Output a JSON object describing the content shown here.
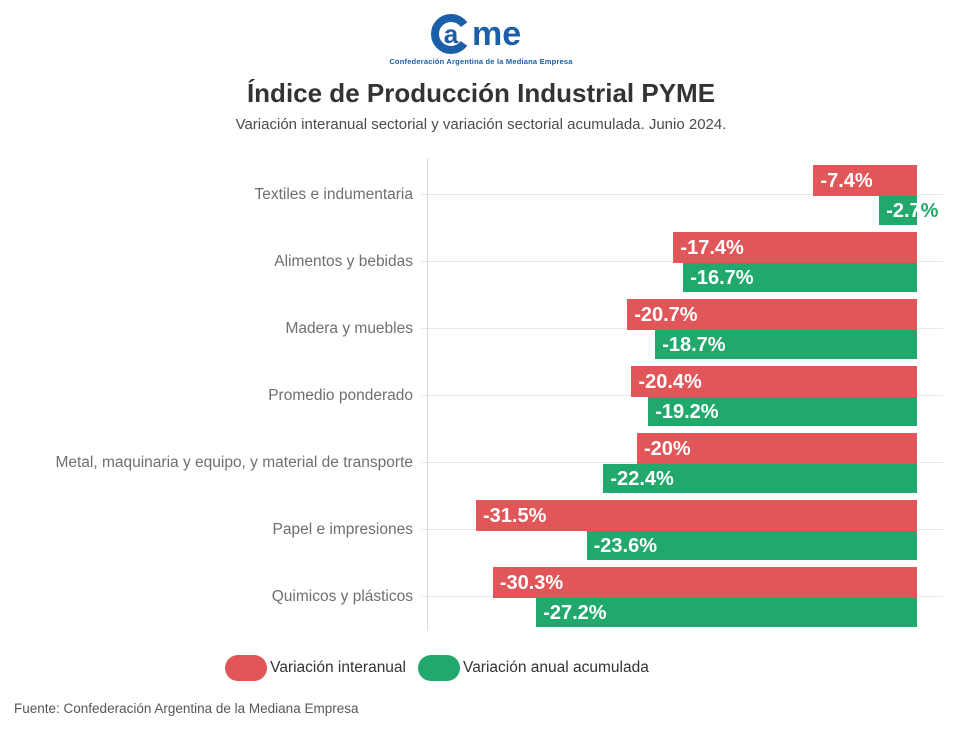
{
  "logo": {
    "wordmark_a": "a",
    "wordmark_rest": "me",
    "tagline": "Confederación Argentina de la Mediana Empresa",
    "color": "#1a5fa8"
  },
  "header": {
    "title": "Índice de Producción Industrial PYME",
    "subtitle": "Variación interanual sectorial y variación sectorial acumulada. Junio 2024."
  },
  "chart_data": {
    "type": "bar",
    "orientation": "horizontal",
    "title": "Índice de Producción Industrial PYME",
    "subtitle": "Variación interanual sectorial y variación sectorial acumulada. Junio 2024.",
    "categories": [
      "Textiles e indumentaria",
      "Alimentos y bebidas",
      "Madera y muebles",
      "Promedio ponderado",
      "Metal, maquinaria y equipo, y material de transporte",
      "Papel e impresiones",
      "Quimicos y plásticos"
    ],
    "series": [
      {
        "name": "Variación interanual",
        "color": "#e15658",
        "values": [
          -7.4,
          -17.4,
          -20.7,
          -20.4,
          -20,
          -31.5,
          -30.3
        ],
        "labels": [
          "-7.4%",
          "-17.4%",
          "-20.7%",
          "-20.4%",
          "-20%",
          "-31.5%",
          "-30.3%"
        ]
      },
      {
        "name": "Variación anual acumulada",
        "color": "#21a86c",
        "values": [
          -2.7,
          -16.7,
          -18.7,
          -19.2,
          -22.4,
          -23.6,
          -27.2
        ],
        "labels": [
          "-2.7%",
          "-16.7%",
          "-18.7%",
          "-19.2%",
          "-22.4%",
          "-23.6%",
          "-27.2%"
        ]
      }
    ],
    "xlim": [
      -35,
      0
    ],
    "value_label_color": "#ffffff",
    "grid": "horizontal gridline per category, vertical axis line at left",
    "legend_position": "bottom"
  },
  "legend": {
    "items": [
      {
        "label": "Variación interanual",
        "color": "#e15658"
      },
      {
        "label": "Variación anual acumulada",
        "color": "#21a86c"
      }
    ]
  },
  "footer": {
    "source": "Fuente: Confederación Argentina de la Mediana Empresa"
  }
}
